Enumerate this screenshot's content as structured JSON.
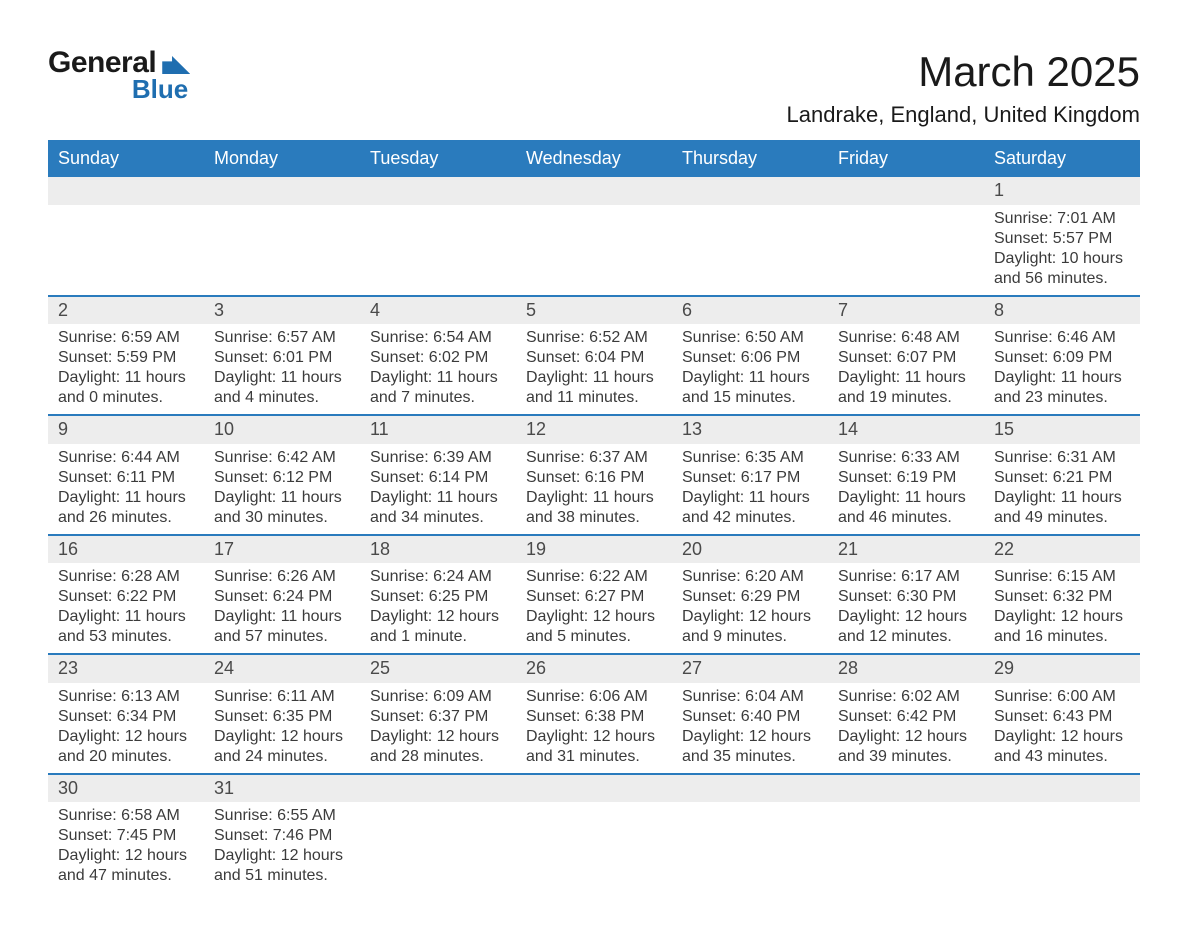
{
  "logo": {
    "word1": "General",
    "word2": "Blue"
  },
  "title": "March 2025",
  "location": "Landrake, England, United Kingdom",
  "colors": {
    "header_bg": "#2a7bbd",
    "header_text": "#ffffff",
    "row_border": "#2a7bbd",
    "daynum_bg": "#ededed",
    "text": "#3b3b3b",
    "logo_blue": "#1f6eb0"
  },
  "typography": {
    "title_fontsize": 42,
    "location_fontsize": 22,
    "header_fontsize": 18,
    "cell_fontsize": 16
  },
  "layout": {
    "columns": 7,
    "rows": 6,
    "start_day_index": 6
  },
  "weekdays": [
    "Sunday",
    "Monday",
    "Tuesday",
    "Wednesday",
    "Thursday",
    "Friday",
    "Saturday"
  ],
  "labels": {
    "sunrise": "Sunrise",
    "sunset": "Sunset",
    "daylight": "Daylight"
  },
  "days": [
    {
      "n": 1,
      "sunrise": "7:01 AM",
      "sunset": "5:57 PM",
      "daylight": "10 hours and 56 minutes."
    },
    {
      "n": 2,
      "sunrise": "6:59 AM",
      "sunset": "5:59 PM",
      "daylight": "11 hours and 0 minutes."
    },
    {
      "n": 3,
      "sunrise": "6:57 AM",
      "sunset": "6:01 PM",
      "daylight": "11 hours and 4 minutes."
    },
    {
      "n": 4,
      "sunrise": "6:54 AM",
      "sunset": "6:02 PM",
      "daylight": "11 hours and 7 minutes."
    },
    {
      "n": 5,
      "sunrise": "6:52 AM",
      "sunset": "6:04 PM",
      "daylight": "11 hours and 11 minutes."
    },
    {
      "n": 6,
      "sunrise": "6:50 AM",
      "sunset": "6:06 PM",
      "daylight": "11 hours and 15 minutes."
    },
    {
      "n": 7,
      "sunrise": "6:48 AM",
      "sunset": "6:07 PM",
      "daylight": "11 hours and 19 minutes."
    },
    {
      "n": 8,
      "sunrise": "6:46 AM",
      "sunset": "6:09 PM",
      "daylight": "11 hours and 23 minutes."
    },
    {
      "n": 9,
      "sunrise": "6:44 AM",
      "sunset": "6:11 PM",
      "daylight": "11 hours and 26 minutes."
    },
    {
      "n": 10,
      "sunrise": "6:42 AM",
      "sunset": "6:12 PM",
      "daylight": "11 hours and 30 minutes."
    },
    {
      "n": 11,
      "sunrise": "6:39 AM",
      "sunset": "6:14 PM",
      "daylight": "11 hours and 34 minutes."
    },
    {
      "n": 12,
      "sunrise": "6:37 AM",
      "sunset": "6:16 PM",
      "daylight": "11 hours and 38 minutes."
    },
    {
      "n": 13,
      "sunrise": "6:35 AM",
      "sunset": "6:17 PM",
      "daylight": "11 hours and 42 minutes."
    },
    {
      "n": 14,
      "sunrise": "6:33 AM",
      "sunset": "6:19 PM",
      "daylight": "11 hours and 46 minutes."
    },
    {
      "n": 15,
      "sunrise": "6:31 AM",
      "sunset": "6:21 PM",
      "daylight": "11 hours and 49 minutes."
    },
    {
      "n": 16,
      "sunrise": "6:28 AM",
      "sunset": "6:22 PM",
      "daylight": "11 hours and 53 minutes."
    },
    {
      "n": 17,
      "sunrise": "6:26 AM",
      "sunset": "6:24 PM",
      "daylight": "11 hours and 57 minutes."
    },
    {
      "n": 18,
      "sunrise": "6:24 AM",
      "sunset": "6:25 PM",
      "daylight": "12 hours and 1 minute."
    },
    {
      "n": 19,
      "sunrise": "6:22 AM",
      "sunset": "6:27 PM",
      "daylight": "12 hours and 5 minutes."
    },
    {
      "n": 20,
      "sunrise": "6:20 AM",
      "sunset": "6:29 PM",
      "daylight": "12 hours and 9 minutes."
    },
    {
      "n": 21,
      "sunrise": "6:17 AM",
      "sunset": "6:30 PM",
      "daylight": "12 hours and 12 minutes."
    },
    {
      "n": 22,
      "sunrise": "6:15 AM",
      "sunset": "6:32 PM",
      "daylight": "12 hours and 16 minutes."
    },
    {
      "n": 23,
      "sunrise": "6:13 AM",
      "sunset": "6:34 PM",
      "daylight": "12 hours and 20 minutes."
    },
    {
      "n": 24,
      "sunrise": "6:11 AM",
      "sunset": "6:35 PM",
      "daylight": "12 hours and 24 minutes."
    },
    {
      "n": 25,
      "sunrise": "6:09 AM",
      "sunset": "6:37 PM",
      "daylight": "12 hours and 28 minutes."
    },
    {
      "n": 26,
      "sunrise": "6:06 AM",
      "sunset": "6:38 PM",
      "daylight": "12 hours and 31 minutes."
    },
    {
      "n": 27,
      "sunrise": "6:04 AM",
      "sunset": "6:40 PM",
      "daylight": "12 hours and 35 minutes."
    },
    {
      "n": 28,
      "sunrise": "6:02 AM",
      "sunset": "6:42 PM",
      "daylight": "12 hours and 39 minutes."
    },
    {
      "n": 29,
      "sunrise": "6:00 AM",
      "sunset": "6:43 PM",
      "daylight": "12 hours and 43 minutes."
    },
    {
      "n": 30,
      "sunrise": "6:58 AM",
      "sunset": "7:45 PM",
      "daylight": "12 hours and 47 minutes."
    },
    {
      "n": 31,
      "sunrise": "6:55 AM",
      "sunset": "7:46 PM",
      "daylight": "12 hours and 51 minutes."
    }
  ]
}
